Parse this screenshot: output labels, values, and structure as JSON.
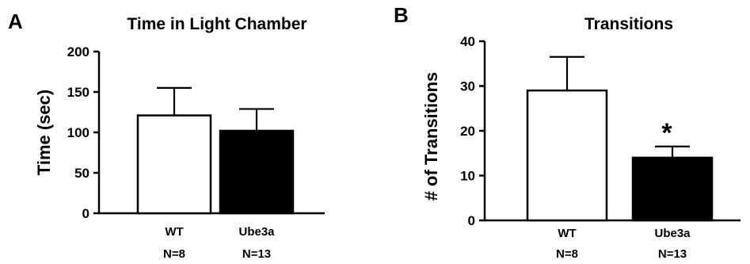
{
  "chart_data": [
    {
      "panel": "A",
      "type": "bar",
      "title": "Time in Light Chamber",
      "xlabel": "",
      "ylabel": "Time (sec)",
      "ylim": [
        0,
        200
      ],
      "yticks": [
        0,
        50,
        100,
        150,
        200
      ],
      "categories": [
        "WT",
        "Ube3a"
      ],
      "sample_sizes": [
        "N=8",
        "N=13"
      ],
      "values": [
        121,
        102
      ],
      "error_bars": [
        34,
        27
      ],
      "bar_fills": [
        "#ffffff",
        "#000000"
      ],
      "significance": [
        "",
        ""
      ],
      "grid": false
    },
    {
      "panel": "B",
      "type": "bar",
      "title": "Transitions",
      "xlabel": "",
      "ylabel": "# of Transitions",
      "ylim": [
        0,
        40
      ],
      "yticks": [
        0,
        10,
        20,
        30,
        40
      ],
      "categories": [
        "WT",
        "Ube3a"
      ],
      "sample_sizes": [
        "N=8",
        "N=13"
      ],
      "values": [
        29,
        14
      ],
      "error_bars": [
        7.5,
        2.5
      ],
      "bar_fills": [
        "#ffffff",
        "#000000"
      ],
      "significance": [
        "",
        "*"
      ],
      "grid": false
    }
  ]
}
